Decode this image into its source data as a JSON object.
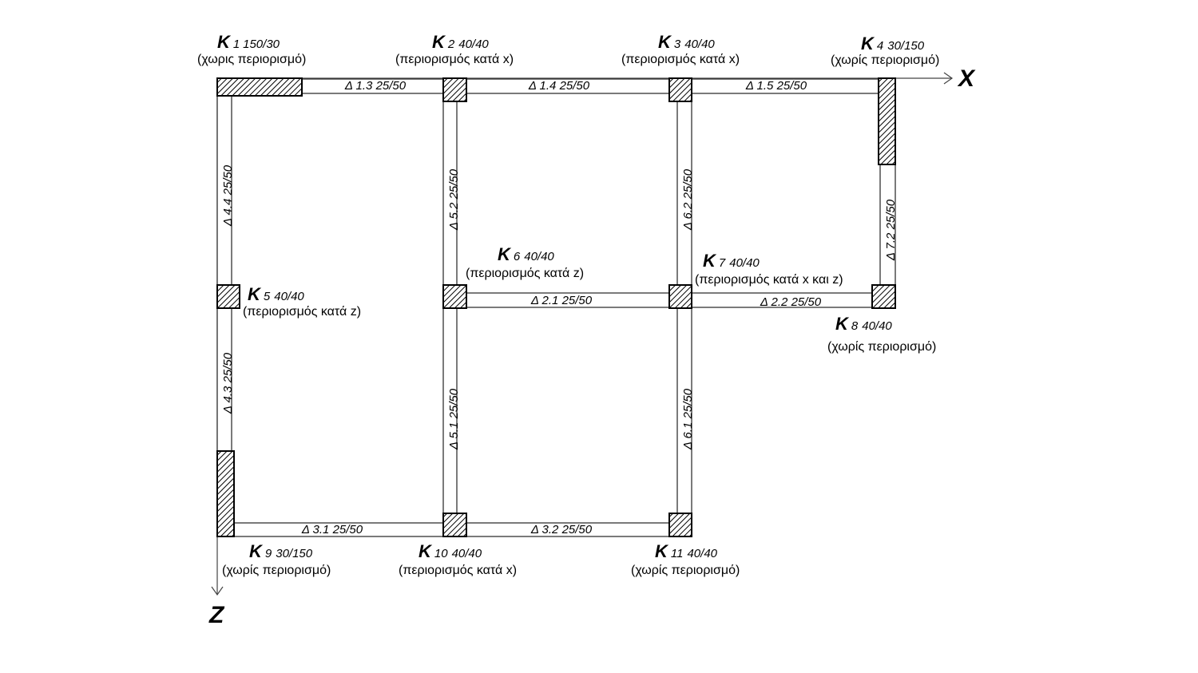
{
  "axes": {
    "x_label": "X",
    "z_label": "Z"
  },
  "beam_prefix": "Δ",
  "columns": [
    {
      "id": "K1",
      "letter": "K",
      "number": "1",
      "section": "150/30",
      "constraint": "(χωρις περιορισμό)"
    },
    {
      "id": "K2",
      "letter": "K",
      "number": "2",
      "section": "40/40",
      "constraint": "(περιορισμός κατά x)"
    },
    {
      "id": "K3",
      "letter": "K",
      "number": "3",
      "section": "40/40",
      "constraint": "(περιορισμός κατά x)"
    },
    {
      "id": "K4",
      "letter": "K",
      "number": "4",
      "section": "30/150",
      "constraint": "(χωρίς περιορισμό)"
    },
    {
      "id": "K5",
      "letter": "K",
      "number": "5",
      "section": "40/40",
      "constraint": "(περιορισμός κατά z)"
    },
    {
      "id": "K6",
      "letter": "K",
      "number": "6",
      "section": "40/40",
      "constraint": "(περιορισμός κατά z)"
    },
    {
      "id": "K7",
      "letter": "K",
      "number": "7",
      "section": "40/40",
      "constraint": "(περιορισμός κατά x και z)"
    },
    {
      "id": "K8",
      "letter": "K",
      "number": "8",
      "section": "40/40",
      "constraint": "(χωρίς περιορισμό)"
    },
    {
      "id": "K9",
      "letter": "K",
      "number": "9",
      "section": "30/150",
      "constraint": "(χωρίς περιορισμό)"
    },
    {
      "id": "K10",
      "letter": "K",
      "number": "10",
      "section": "40/40",
      "constraint": "(περιορισμός κατά x)"
    },
    {
      "id": "K11",
      "letter": "K",
      "number": "11",
      "section": "40/40",
      "constraint": "(χωρίς περιορισμό)"
    }
  ],
  "beams": [
    {
      "id": "D1.3",
      "label": "Δ 1.3  25/50"
    },
    {
      "id": "D1.4",
      "label": "Δ  1.4  25/50"
    },
    {
      "id": "D1.5",
      "label": "Δ  1.5  25/50"
    },
    {
      "id": "D4.4",
      "label": "Δ 4.4  25/50"
    },
    {
      "id": "D5.2",
      "label": "Δ 5.2  25/50"
    },
    {
      "id": "D6.2",
      "label": "Δ 6.2  25/50"
    },
    {
      "id": "D7.2",
      "label": "Δ  7.2  25/50"
    },
    {
      "id": "D2.1",
      "label": "Δ 2.1  25/50"
    },
    {
      "id": "D2.2",
      "label": "Δ 2.2  25/50"
    },
    {
      "id": "D4.3",
      "label": "Δ 4.3  25/50"
    },
    {
      "id": "D5.1",
      "label": "Δ 5.1  25/50"
    },
    {
      "id": "D6.1",
      "label": "Δ 6.1  25/50"
    },
    {
      "id": "D3.1",
      "label": "Δ 3.1  25/50"
    },
    {
      "id": "D3.2",
      "label": "Δ 3.2  25/50"
    }
  ]
}
